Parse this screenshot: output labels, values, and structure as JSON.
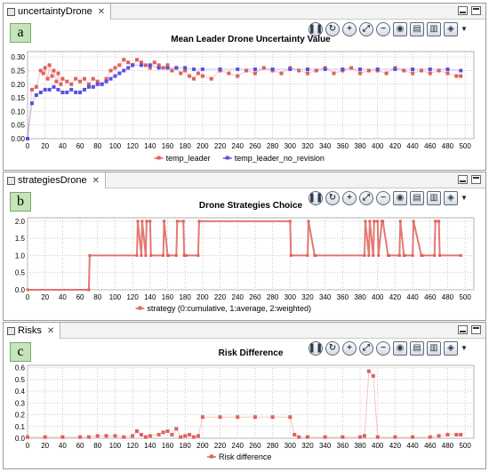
{
  "panels": [
    {
      "id": "a",
      "tab": "uncertaintyDrone",
      "letter": "a",
      "chart_data": {
        "type": "scatter",
        "title": "Mean Leader Drone Uncertainty Value",
        "xlabel": "",
        "ylabel": "",
        "xlim": [
          0,
          510
        ],
        "ylim": [
          0,
          0.32
        ],
        "xticks": [
          0,
          20,
          40,
          60,
          80,
          100,
          120,
          140,
          160,
          180,
          200,
          220,
          240,
          260,
          280,
          300,
          320,
          340,
          360,
          380,
          400,
          420,
          440,
          460,
          480,
          500
        ],
        "yticks": [
          0,
          0.05,
          0.1,
          0.15,
          0.2,
          0.25,
          0.3
        ],
        "ytick_labels": [
          "0.00",
          "0.05",
          "0.10",
          "0.15",
          "0.20",
          "0.25",
          "0.30"
        ],
        "grid": true,
        "legend_position": "bottom",
        "series": [
          {
            "name": "temp_leader",
            "color": "#e0605a",
            "x": [
              0,
              5,
              10,
              15,
              18,
              20,
              23,
              25,
              28,
              30,
              33,
              35,
              38,
              40,
              45,
              50,
              55,
              60,
              65,
              70,
              75,
              80,
              85,
              90,
              95,
              100,
              105,
              110,
              115,
              120,
              125,
              130,
              135,
              140,
              145,
              150,
              155,
              160,
              165,
              170,
              175,
              180,
              185,
              190,
              195,
              200,
              210,
              220,
              230,
              240,
              250,
              260,
              270,
              280,
              290,
              300,
              310,
              320,
              330,
              340,
              350,
              360,
              370,
              380,
              390,
              400,
              410,
              420,
              430,
              440,
              450,
              460,
              470,
              480,
              490,
              495
            ],
            "y": [
              0.0,
              0.18,
              0.19,
              0.25,
              0.24,
              0.26,
              0.22,
              0.27,
              0.23,
              0.25,
              0.21,
              0.24,
              0.2,
              0.22,
              0.21,
              0.2,
              0.22,
              0.21,
              0.22,
              0.2,
              0.22,
              0.21,
              0.2,
              0.22,
              0.25,
              0.26,
              0.27,
              0.29,
              0.28,
              0.27,
              0.29,
              0.28,
              0.27,
              0.26,
              0.28,
              0.27,
              0.26,
              0.27,
              0.25,
              0.26,
              0.24,
              0.25,
              0.23,
              0.22,
              0.24,
              0.23,
              0.22,
              0.25,
              0.24,
              0.23,
              0.25,
              0.24,
              0.26,
              0.25,
              0.24,
              0.26,
              0.25,
              0.24,
              0.25,
              0.26,
              0.24,
              0.25,
              0.26,
              0.24,
              0.25,
              0.25,
              0.24,
              0.26,
              0.25,
              0.24,
              0.25,
              0.24,
              0.25,
              0.24,
              0.23,
              0.23
            ]
          },
          {
            "name": "temp_leader_no_revision",
            "color": "#5a4fe0",
            "x": [
              0,
              5,
              10,
              15,
              20,
              25,
              30,
              35,
              40,
              45,
              50,
              55,
              60,
              65,
              70,
              75,
              80,
              85,
              90,
              95,
              100,
              105,
              110,
              115,
              120,
              130,
              140,
              150,
              160,
              170,
              180,
              190,
              200,
              220,
              240,
              260,
              280,
              300,
              320,
              340,
              360,
              380,
              400,
              420,
              440,
              460,
              480,
              495
            ],
            "y": [
              0.0,
              0.13,
              0.16,
              0.17,
              0.18,
              0.18,
              0.19,
              0.18,
              0.17,
              0.17,
              0.18,
              0.17,
              0.17,
              0.18,
              0.19,
              0.19,
              0.2,
              0.2,
              0.21,
              0.22,
              0.23,
              0.24,
              0.25,
              0.26,
              0.27,
              0.27,
              0.27,
              0.26,
              0.26,
              0.26,
              0.26,
              0.255,
              0.255,
              0.255,
              0.255,
              0.255,
              0.255,
              0.255,
              0.255,
              0.255,
              0.255,
              0.255,
              0.255,
              0.255,
              0.255,
              0.255,
              0.255,
              0.25
            ]
          }
        ]
      }
    },
    {
      "id": "b",
      "tab": "strategiesDrone",
      "letter": "b",
      "chart_data": {
        "type": "line",
        "title": "Drone Strategies Choice",
        "xlabel": "",
        "ylabel": "",
        "xlim": [
          0,
          510
        ],
        "ylim": [
          0,
          2.1
        ],
        "xticks": [
          0,
          20,
          40,
          60,
          80,
          100,
          120,
          140,
          160,
          180,
          200,
          220,
          240,
          260,
          280,
          300,
          320,
          340,
          360,
          380,
          400,
          420,
          440,
          460,
          480,
          500
        ],
        "yticks": [
          0,
          0.5,
          1.0,
          1.5,
          2.0
        ],
        "ytick_labels": [
          "0.0",
          "0.5",
          "1.0",
          "1.5",
          "2.0"
        ],
        "grid": true,
        "legend_position": "bottom",
        "series": [
          {
            "name": "strategy (0:cumulative, 1:average, 2:weighted)",
            "color": "#e0605a",
            "x": [
              0,
              70,
              71,
              125,
              126,
              130,
              131,
              135,
              136,
              140,
              141,
              155,
              156,
              160,
              161,
              170,
              171,
              178,
              179,
              180,
              181,
              195,
              196,
              300,
              301,
              320,
              321,
              328,
              329,
              385,
              386,
              390,
              391,
              395,
              396,
              400,
              401,
              405,
              406,
              412,
              413,
              425,
              426,
              430,
              431,
              440,
              441,
              450,
              451,
              465,
              466,
              470,
              471,
              495
            ],
            "y": [
              0,
              0,
              1,
              1,
              2,
              1,
              2,
              1,
              2,
              2,
              1,
              1,
              2,
              1,
              1,
              1,
              2,
              2,
              1,
              1,
              1,
              1,
              2,
              2,
              1,
              1,
              2,
              1,
              1,
              1,
              2,
              1,
              2,
              1,
              2,
              2,
              1,
              2,
              2,
              1,
              1,
              1,
              2,
              1,
              1,
              1,
              2,
              1,
              1,
              1,
              2,
              2,
              1,
              1
            ]
          }
        ]
      }
    },
    {
      "id": "c",
      "tab": "Risks",
      "letter": "c",
      "chart_data": {
        "type": "scatter",
        "title": "Risk Difference",
        "xlabel": "",
        "ylabel": "",
        "xlim": [
          0,
          510
        ],
        "ylim": [
          0,
          0.62
        ],
        "xticks": [
          0,
          20,
          40,
          60,
          80,
          100,
          120,
          140,
          160,
          180,
          200,
          220,
          240,
          260,
          280,
          300,
          320,
          340,
          360,
          380,
          400,
          420,
          440,
          460,
          480,
          500
        ],
        "yticks": [
          0,
          0.1,
          0.2,
          0.3,
          0.4,
          0.5,
          0.6
        ],
        "ytick_labels": [
          "0.0",
          "0.1",
          "0.2",
          "0.3",
          "0.4",
          "0.5",
          "0.6"
        ],
        "grid": true,
        "legend_position": "bottom",
        "series": [
          {
            "name": "Risk difference",
            "color": "#e0605a",
            "x": [
              0,
              20,
              40,
              60,
              70,
              80,
              90,
              100,
              110,
              120,
              125,
              130,
              135,
              140,
              150,
              155,
              160,
              165,
              170,
              175,
              180,
              185,
              190,
              195,
              200,
              220,
              240,
              260,
              280,
              300,
              305,
              310,
              320,
              340,
              360,
              380,
              385,
              390,
              395,
              400,
              420,
              440,
              460,
              470,
              480,
              490,
              495
            ],
            "y": [
              0.01,
              0.01,
              0.01,
              0.01,
              0.01,
              0.02,
              0.02,
              0.02,
              0.01,
              0.02,
              0.06,
              0.03,
              0.01,
              0.02,
              0.03,
              0.05,
              0.06,
              0.03,
              0.08,
              0.01,
              0.02,
              0.03,
              0.01,
              0.02,
              0.18,
              0.18,
              0.18,
              0.18,
              0.18,
              0.18,
              0.03,
              0.01,
              0.01,
              0.01,
              0.01,
              0.01,
              0.02,
              0.57,
              0.53,
              0.01,
              0.01,
              0.01,
              0.01,
              0.02,
              0.03,
              0.03,
              0.03
            ]
          }
        ]
      }
    }
  ],
  "toolbar": {
    "icons": [
      "pause-icon",
      "refresh-icon",
      "zoom-in-icon",
      "fit-icon",
      "zoom-out-icon",
      "snapshot-icon",
      "table-icon",
      "layout-icon",
      "layers-icon",
      "dropdown-icon"
    ]
  }
}
